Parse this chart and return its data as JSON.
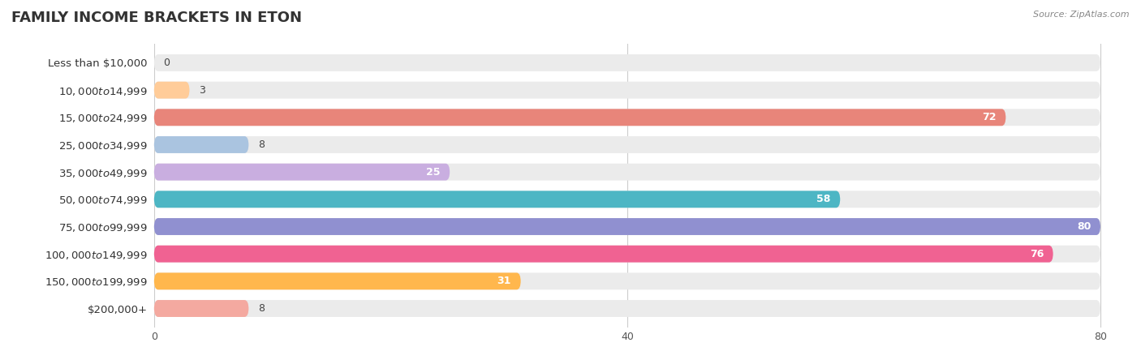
{
  "title": "FAMILY INCOME BRACKETS IN ETON",
  "source": "Source: ZipAtlas.com",
  "categories": [
    "Less than $10,000",
    "$10,000 to $14,999",
    "$15,000 to $24,999",
    "$25,000 to $34,999",
    "$35,000 to $49,999",
    "$50,000 to $74,999",
    "$75,000 to $99,999",
    "$100,000 to $149,999",
    "$150,000 to $199,999",
    "$200,000+"
  ],
  "values": [
    0,
    3,
    72,
    8,
    25,
    58,
    80,
    76,
    31,
    8
  ],
  "bar_colors": [
    "#f48fb1",
    "#ffcc99",
    "#e8857a",
    "#aac4e0",
    "#c9aee0",
    "#4db6c4",
    "#9090d0",
    "#f06292",
    "#ffb74d",
    "#f4a9a0"
  ],
  "bar_bg_color": "#ebebeb",
  "xlim": [
    0,
    80
  ],
  "xticks": [
    0,
    40,
    80
  ],
  "title_fontsize": 13,
  "label_fontsize": 9.5,
  "value_fontsize": 9,
  "background_color": "#ffffff",
  "value_inside_threshold": 10
}
